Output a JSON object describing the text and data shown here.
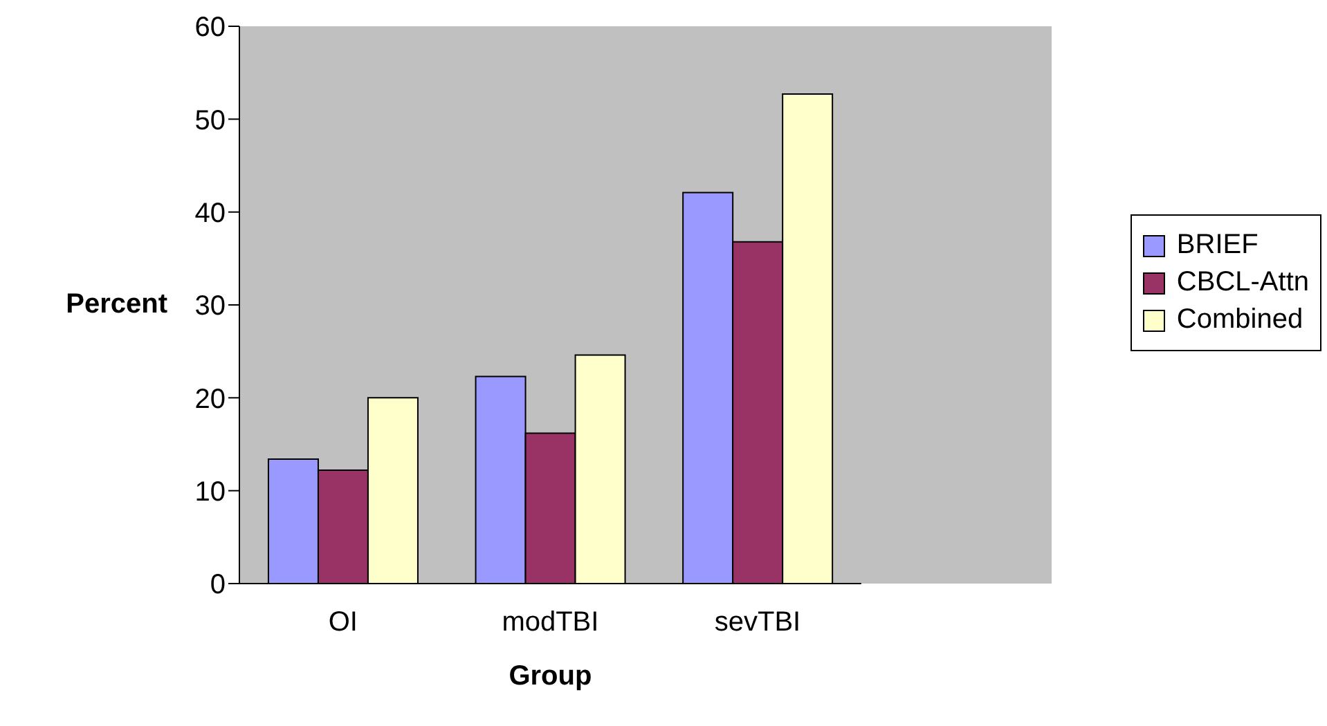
{
  "chart_data": {
    "type": "bar",
    "xlabel": "Group",
    "ylabel": "Percent",
    "categories": [
      "OI",
      "modTBI",
      "sevTBI"
    ],
    "series": [
      {
        "name": "BRIEF",
        "color": "#9999ff",
        "values": [
          13.4,
          22.3,
          42.1
        ]
      },
      {
        "name": "CBCL-Attn",
        "color": "#993366",
        "values": [
          12.2,
          16.2,
          36.8
        ]
      },
      {
        "name": "Combined",
        "color": "#ffffcc",
        "values": [
          20,
          24.6,
          52.7
        ]
      }
    ],
    "ylim": [
      0,
      60
    ],
    "yticks": [
      0,
      10,
      20,
      30,
      40,
      50,
      60
    ],
    "grid": false,
    "legend": "right"
  }
}
